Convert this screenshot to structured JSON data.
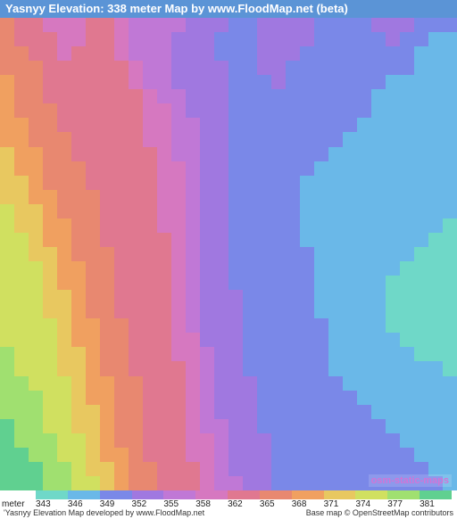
{
  "title": "Yasnyy Elevation: 338 meter Map by www.FloodMap.net (beta)",
  "watermark": "osm-static-maps",
  "footer_left": "'Yasnyy Elevation Map developed by www.FloodMap.net",
  "footer_right": "Base map © OpenStreetMap contributors",
  "map": {
    "type": "heatmap",
    "cols": 32,
    "rows": 33,
    "background_color": "#ffffff",
    "palette": {
      "343": "#6fd8c8",
      "346": "#6ab8e8",
      "349": "#7a88e8",
      "352": "#a078e0",
      "355": "#c078d6",
      "358": "#d678c0",
      "362": "#e07890",
      "365": "#e88870",
      "368": "#f0a060",
      "371": "#e8c860",
      "374": "#d0e060",
      "377": "#a0e070",
      "381": "#60d090"
    },
    "grid": [
      [
        365,
        362,
        362,
        358,
        358,
        358,
        362,
        362,
        358,
        355,
        355,
        355,
        355,
        352,
        352,
        352,
        349,
        349,
        352,
        352,
        352,
        352,
        349,
        349,
        349,
        349,
        352,
        352,
        352,
        349,
        349,
        349
      ],
      [
        365,
        362,
        362,
        362,
        358,
        358,
        362,
        362,
        358,
        355,
        355,
        355,
        352,
        352,
        352,
        349,
        349,
        349,
        352,
        352,
        352,
        352,
        349,
        349,
        349,
        349,
        349,
        352,
        349,
        349,
        346,
        346
      ],
      [
        365,
        365,
        362,
        362,
        358,
        362,
        362,
        362,
        358,
        355,
        355,
        355,
        352,
        352,
        352,
        349,
        349,
        349,
        352,
        352,
        352,
        349,
        349,
        349,
        349,
        349,
        349,
        349,
        349,
        346,
        346,
        346
      ],
      [
        365,
        365,
        365,
        362,
        362,
        362,
        362,
        362,
        362,
        358,
        355,
        355,
        352,
        352,
        352,
        352,
        349,
        349,
        352,
        352,
        349,
        349,
        349,
        349,
        349,
        349,
        349,
        349,
        349,
        346,
        346,
        346
      ],
      [
        368,
        365,
        365,
        362,
        362,
        362,
        362,
        362,
        362,
        358,
        355,
        355,
        352,
        352,
        352,
        352,
        349,
        349,
        349,
        352,
        349,
        349,
        349,
        349,
        349,
        349,
        349,
        346,
        346,
        346,
        346,
        346
      ],
      [
        368,
        365,
        365,
        362,
        362,
        362,
        362,
        362,
        362,
        362,
        358,
        355,
        355,
        352,
        352,
        352,
        349,
        349,
        349,
        349,
        349,
        349,
        349,
        349,
        349,
        349,
        346,
        346,
        346,
        346,
        346,
        346
      ],
      [
        368,
        365,
        365,
        365,
        362,
        362,
        362,
        362,
        362,
        362,
        358,
        358,
        355,
        352,
        352,
        352,
        349,
        349,
        349,
        349,
        349,
        349,
        349,
        349,
        349,
        349,
        346,
        346,
        346,
        346,
        346,
        346
      ],
      [
        368,
        368,
        365,
        365,
        362,
        362,
        362,
        362,
        362,
        362,
        358,
        358,
        355,
        355,
        352,
        352,
        349,
        349,
        349,
        349,
        349,
        349,
        349,
        349,
        349,
        346,
        346,
        346,
        346,
        346,
        346,
        346
      ],
      [
        368,
        368,
        365,
        365,
        365,
        362,
        362,
        362,
        362,
        362,
        358,
        358,
        355,
        355,
        352,
        352,
        349,
        349,
        349,
        349,
        349,
        349,
        349,
        349,
        346,
        346,
        346,
        346,
        346,
        346,
        346,
        346
      ],
      [
        371,
        368,
        368,
        365,
        365,
        362,
        362,
        362,
        362,
        362,
        362,
        358,
        355,
        355,
        352,
        352,
        349,
        349,
        349,
        349,
        349,
        349,
        349,
        346,
        346,
        346,
        346,
        346,
        346,
        346,
        346,
        346
      ],
      [
        371,
        368,
        368,
        365,
        365,
        365,
        362,
        362,
        362,
        362,
        362,
        358,
        358,
        355,
        352,
        352,
        349,
        349,
        349,
        349,
        349,
        349,
        346,
        346,
        346,
        346,
        346,
        346,
        346,
        346,
        346,
        346
      ],
      [
        371,
        371,
        368,
        365,
        365,
        365,
        362,
        362,
        362,
        362,
        362,
        358,
        358,
        355,
        352,
        352,
        349,
        349,
        349,
        349,
        349,
        346,
        346,
        346,
        346,
        346,
        346,
        346,
        346,
        346,
        346,
        346
      ],
      [
        371,
        371,
        368,
        368,
        365,
        365,
        365,
        362,
        362,
        362,
        362,
        358,
        358,
        355,
        352,
        352,
        349,
        349,
        349,
        349,
        349,
        346,
        346,
        346,
        346,
        346,
        346,
        346,
        346,
        346,
        346,
        346
      ],
      [
        374,
        371,
        371,
        368,
        365,
        365,
        365,
        362,
        362,
        362,
        362,
        358,
        358,
        355,
        352,
        352,
        349,
        349,
        349,
        349,
        349,
        346,
        346,
        346,
        346,
        346,
        346,
        346,
        346,
        346,
        346,
        346
      ],
      [
        374,
        371,
        371,
        368,
        368,
        365,
        365,
        362,
        362,
        362,
        362,
        358,
        358,
        355,
        352,
        352,
        349,
        349,
        349,
        349,
        349,
        346,
        346,
        346,
        346,
        346,
        346,
        346,
        346,
        346,
        346,
        343
      ],
      [
        374,
        374,
        371,
        368,
        368,
        365,
        365,
        362,
        362,
        362,
        362,
        362,
        358,
        355,
        352,
        352,
        349,
        349,
        349,
        349,
        349,
        346,
        346,
        346,
        346,
        346,
        346,
        346,
        346,
        346,
        343,
        343
      ],
      [
        374,
        374,
        371,
        371,
        368,
        365,
        365,
        365,
        362,
        362,
        362,
        362,
        358,
        355,
        352,
        352,
        349,
        349,
        349,
        349,
        349,
        349,
        346,
        346,
        346,
        346,
        346,
        346,
        346,
        343,
        343,
        343
      ],
      [
        374,
        374,
        374,
        371,
        368,
        368,
        365,
        365,
        362,
        362,
        362,
        362,
        358,
        355,
        352,
        352,
        349,
        349,
        349,
        349,
        349,
        349,
        346,
        346,
        346,
        346,
        346,
        346,
        343,
        343,
        343,
        343
      ],
      [
        374,
        374,
        374,
        371,
        368,
        368,
        365,
        365,
        362,
        362,
        362,
        362,
        358,
        355,
        352,
        352,
        349,
        349,
        349,
        349,
        349,
        349,
        346,
        346,
        346,
        346,
        346,
        343,
        343,
        343,
        343,
        343
      ],
      [
        374,
        374,
        374,
        371,
        371,
        368,
        365,
        365,
        362,
        362,
        362,
        362,
        358,
        355,
        352,
        352,
        352,
        349,
        349,
        349,
        349,
        349,
        346,
        346,
        346,
        346,
        346,
        343,
        343,
        343,
        343,
        343
      ],
      [
        374,
        374,
        374,
        371,
        371,
        368,
        365,
        365,
        362,
        362,
        362,
        362,
        358,
        355,
        352,
        352,
        352,
        349,
        349,
        349,
        349,
        349,
        346,
        346,
        346,
        346,
        346,
        343,
        343,
        343,
        343,
        343
      ],
      [
        374,
        374,
        374,
        374,
        371,
        368,
        368,
        365,
        365,
        362,
        362,
        362,
        358,
        355,
        352,
        352,
        352,
        349,
        349,
        349,
        349,
        349,
        349,
        346,
        346,
        346,
        346,
        343,
        343,
        343,
        343,
        343
      ],
      [
        374,
        374,
        374,
        374,
        371,
        368,
        368,
        365,
        365,
        362,
        362,
        362,
        358,
        358,
        352,
        352,
        352,
        349,
        349,
        349,
        349,
        349,
        349,
        346,
        346,
        346,
        346,
        346,
        343,
        343,
        343,
        343
      ],
      [
        377,
        374,
        374,
        374,
        371,
        371,
        368,
        365,
        365,
        362,
        362,
        362,
        358,
        358,
        355,
        352,
        352,
        349,
        349,
        349,
        349,
        349,
        349,
        346,
        346,
        346,
        346,
        346,
        346,
        343,
        343,
        343
      ],
      [
        377,
        374,
        374,
        374,
        371,
        371,
        368,
        365,
        365,
        362,
        362,
        362,
        362,
        358,
        355,
        352,
        352,
        349,
        349,
        349,
        349,
        349,
        349,
        346,
        346,
        346,
        346,
        346,
        346,
        346,
        346,
        343
      ],
      [
        377,
        377,
        374,
        374,
        374,
        371,
        368,
        368,
        365,
        365,
        362,
        362,
        362,
        358,
        355,
        352,
        352,
        352,
        349,
        349,
        349,
        349,
        349,
        349,
        346,
        346,
        346,
        346,
        346,
        346,
        346,
        346
      ],
      [
        377,
        377,
        377,
        374,
        374,
        371,
        368,
        368,
        365,
        365,
        362,
        362,
        362,
        358,
        355,
        352,
        352,
        352,
        349,
        349,
        349,
        349,
        349,
        349,
        349,
        346,
        346,
        346,
        346,
        346,
        346,
        346
      ],
      [
        377,
        377,
        377,
        374,
        374,
        371,
        371,
        368,
        365,
        365,
        362,
        362,
        362,
        358,
        355,
        352,
        352,
        352,
        349,
        349,
        349,
        349,
        349,
        349,
        349,
        349,
        346,
        346,
        346,
        346,
        346,
        346
      ],
      [
        381,
        377,
        377,
        374,
        374,
        371,
        371,
        368,
        365,
        365,
        362,
        362,
        362,
        358,
        355,
        355,
        352,
        352,
        349,
        349,
        349,
        349,
        349,
        349,
        349,
        349,
        349,
        346,
        346,
        346,
        346,
        346
      ],
      [
        381,
        377,
        377,
        377,
        374,
        374,
        371,
        368,
        365,
        365,
        362,
        362,
        362,
        358,
        358,
        355,
        352,
        352,
        352,
        349,
        349,
        349,
        349,
        349,
        349,
        349,
        349,
        349,
        346,
        346,
        346,
        346
      ],
      [
        381,
        381,
        377,
        377,
        374,
        374,
        371,
        368,
        368,
        365,
        362,
        362,
        362,
        358,
        358,
        355,
        352,
        352,
        352,
        349,
        349,
        349,
        349,
        349,
        349,
        349,
        349,
        349,
        349,
        346,
        346,
        346
      ],
      [
        381,
        381,
        381,
        377,
        377,
        374,
        371,
        371,
        368,
        365,
        365,
        362,
        362,
        362,
        358,
        355,
        352,
        352,
        352,
        349,
        349,
        349,
        349,
        349,
        349,
        349,
        349,
        349,
        349,
        349,
        346,
        346
      ],
      [
        381,
        381,
        381,
        377,
        377,
        374,
        374,
        371,
        368,
        365,
        365,
        362,
        362,
        362,
        358,
        355,
        355,
        352,
        352,
        349,
        349,
        349,
        349,
        349,
        349,
        349,
        349,
        349,
        349,
        349,
        349,
        346
      ]
    ]
  },
  "legend": {
    "unit": "meter",
    "values": [
      343,
      346,
      349,
      352,
      355,
      358,
      362,
      365,
      368,
      371,
      374,
      377,
      381
    ],
    "colors": [
      "#6fd8c8",
      "#6ab8e8",
      "#7a88e8",
      "#a078e0",
      "#c078d6",
      "#d678c0",
      "#e07890",
      "#e88870",
      "#f0a060",
      "#e8c860",
      "#d0e060",
      "#a0e070",
      "#60d090"
    ],
    "font_size": 10
  }
}
